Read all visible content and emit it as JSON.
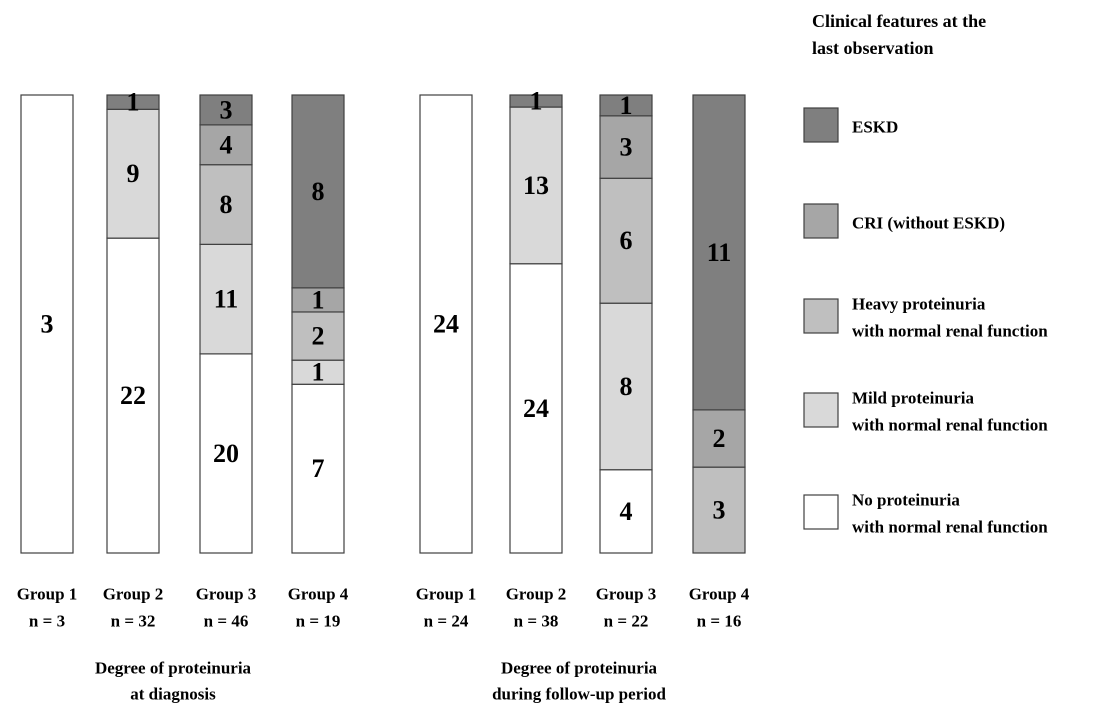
{
  "legend": {
    "title_lines": [
      "Clinical features at the",
      "last observation"
    ],
    "items": [
      {
        "key": "eskd",
        "lines": [
          "ESKD"
        ],
        "color": "#7f7f7f"
      },
      {
        "key": "cri",
        "lines": [
          "CRI (without ESKD)"
        ],
        "color": "#a6a6a6"
      },
      {
        "key": "heavy",
        "lines": [
          "Heavy proteinuria",
          "with normal renal function"
        ],
        "color": "#bfbfbf"
      },
      {
        "key": "mild",
        "lines": [
          "Mild proteinuria",
          "with normal renal function"
        ],
        "color": "#d9d9d9"
      },
      {
        "key": "none",
        "lines": [
          "No proteinuria",
          "with normal renal function"
        ],
        "color": "#ffffff"
      }
    ]
  },
  "chart_data": [
    {
      "type": "bar",
      "stacked": true,
      "caption_lines": [
        "Degree of proteinuria",
        "at diagnosis"
      ],
      "categories": [
        "Group 1",
        "Group 2",
        "Group 3",
        "Group 4"
      ],
      "n_labels": [
        "n = 3",
        "n = 32",
        "n = 46",
        "n = 19"
      ],
      "series": [
        {
          "name": "No proteinuria with normal renal function",
          "key": "none",
          "values": [
            3,
            22,
            20,
            7
          ]
        },
        {
          "name": "Mild proteinuria with normal renal function",
          "key": "mild",
          "values": [
            0,
            9,
            11,
            1
          ]
        },
        {
          "name": "Heavy proteinuria with normal renal function",
          "key": "heavy",
          "values": [
            0,
            0,
            8,
            2
          ]
        },
        {
          "name": "CRI (without ESKD)",
          "key": "cri",
          "values": [
            0,
            0,
            4,
            1
          ]
        },
        {
          "name": "ESKD",
          "key": "eskd",
          "values": [
            0,
            1,
            3,
            8
          ]
        }
      ]
    },
    {
      "type": "bar",
      "stacked": true,
      "caption_lines": [
        "Degree of proteinuria",
        "during follow-up period"
      ],
      "categories": [
        "Group 1",
        "Group 2",
        "Group 3",
        "Group 4"
      ],
      "n_labels": [
        "n = 24",
        "n = 38",
        "n = 22",
        "n = 16"
      ],
      "series": [
        {
          "name": "No proteinuria with normal renal function",
          "key": "none",
          "values": [
            24,
            24,
            4,
            0
          ]
        },
        {
          "name": "Mild proteinuria with normal renal function",
          "key": "mild",
          "values": [
            0,
            13,
            8,
            0
          ]
        },
        {
          "name": "Heavy proteinuria with normal renal function",
          "key": "heavy",
          "values": [
            0,
            0,
            6,
            3
          ]
        },
        {
          "name": "CRI (without ESKD)",
          "key": "cri",
          "values": [
            0,
            0,
            3,
            2
          ]
        },
        {
          "name": "ESKD",
          "key": "eskd",
          "values": [
            0,
            1,
            1,
            11
          ]
        }
      ]
    }
  ]
}
